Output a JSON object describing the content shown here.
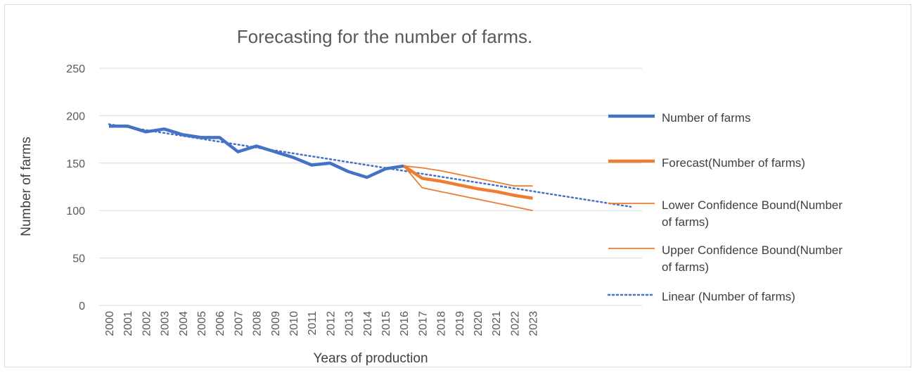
{
  "chart_data": {
    "type": "line",
    "title": "Forecasting for the number of farms.",
    "xlabel": "Years of production",
    "ylabel": "Number of farms",
    "ylim": [
      0,
      250
    ],
    "yticks": [
      "0",
      "50",
      "100",
      "150",
      "200",
      "250"
    ],
    "categories": [
      "2000",
      "2001",
      "2002",
      "2003",
      "2004",
      "2005",
      "2006",
      "2007",
      "2008",
      "2009",
      "2010",
      "2011",
      "2012",
      "2013",
      "2014",
      "2015",
      "2016",
      "2017",
      "2018",
      "2019",
      "2020",
      "2021",
      "2022",
      "2023"
    ],
    "grid": true,
    "legend_position": "right",
    "series": [
      {
        "name": "Number of farms",
        "color": "#4472c4",
        "style": "solid-thick",
        "values": [
          189,
          189,
          183,
          186,
          180,
          177,
          177,
          162,
          168,
          162,
          156,
          148,
          150,
          141,
          135,
          144,
          147,
          null,
          null,
          null,
          null,
          null,
          null,
          null
        ]
      },
      {
        "name": "Forecast(Number of farms)",
        "color": "#ed7d31",
        "style": "solid-thick",
        "values": [
          null,
          null,
          null,
          null,
          null,
          null,
          null,
          null,
          null,
          null,
          null,
          null,
          null,
          null,
          null,
          null,
          147,
          134,
          131,
          127,
          123,
          120,
          116,
          113
        ]
      },
      {
        "name": "Lower Confidence Bound(Number of farms)",
        "color": "#ed7d31",
        "style": "solid-thin",
        "values": [
          null,
          null,
          null,
          null,
          null,
          null,
          null,
          null,
          null,
          null,
          null,
          null,
          null,
          null,
          null,
          null,
          147,
          124,
          120,
          116,
          112,
          108,
          104,
          100
        ]
      },
      {
        "name": "Upper Confidence Bound(Number of farms)",
        "color": "#ed7d31",
        "style": "solid-thin",
        "values": [
          null,
          null,
          null,
          null,
          null,
          null,
          null,
          null,
          null,
          null,
          null,
          null,
          null,
          null,
          null,
          null,
          147,
          145,
          142,
          138,
          134,
          130,
          126,
          126
        ]
      },
      {
        "name": "Linear (Number of farms)",
        "color": "#4472c4",
        "style": "dotted",
        "trend_start": 191,
        "trend_end": 104
      }
    ]
  }
}
